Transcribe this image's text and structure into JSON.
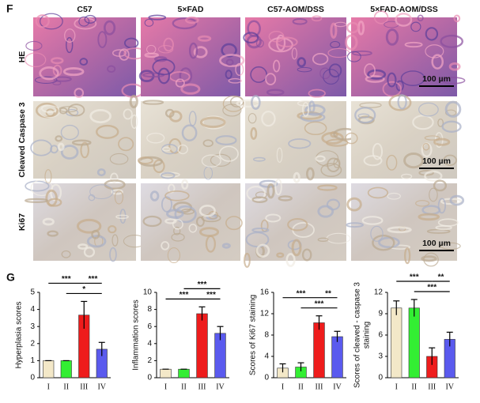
{
  "panel_f": {
    "label": "F",
    "columns": [
      "C57",
      "5×FAD",
      "C57-AOM/DSS",
      "5×FAD-AOM/DSS"
    ],
    "rows": [
      "HE",
      "Cleaved Caspase 3",
      "Ki67"
    ],
    "scale_bar": "100 µm"
  },
  "panel_g": {
    "label": "G"
  },
  "chart_data": [
    {
      "type": "bar",
      "ylabel": [
        "Hyperplasia scores"
      ],
      "categories": [
        "I",
        "II",
        "III",
        "IV"
      ],
      "values": [
        1,
        1,
        3.67,
        1.67
      ],
      "errors": [
        0,
        0,
        0.8,
        0.4
      ],
      "colors": [
        "#f3e8c8",
        "#33ee33",
        "#ee1c1c",
        "#5a5aee"
      ],
      "ylim": [
        0,
        5
      ],
      "yticks": [
        0,
        1,
        2,
        3,
        4,
        5
      ],
      "significance": [
        {
          "from": 1,
          "to": 3,
          "label": "*"
        },
        {
          "from": 0,
          "to": 2,
          "label": "***"
        },
        {
          "from": 2,
          "to": 3,
          "label": "***"
        }
      ]
    },
    {
      "type": "bar",
      "ylabel": [
        "Inflammation scores"
      ],
      "categories": [
        "I",
        "II",
        "III",
        "IV"
      ],
      "values": [
        1,
        1,
        7.5,
        5.2
      ],
      "errors": [
        0,
        0,
        0.8,
        0.8
      ],
      "colors": [
        "#f3e8c8",
        "#33ee33",
        "#ee1c1c",
        "#5a5aee"
      ],
      "ylim": [
        0,
        10
      ],
      "yticks": [
        0,
        2,
        4,
        6,
        8,
        10
      ],
      "significance": [
        {
          "from": 0,
          "to": 2,
          "label": "***"
        },
        {
          "from": 2,
          "to": 3,
          "label": "***"
        },
        {
          "from": 1,
          "to": 3,
          "label": "***"
        }
      ]
    },
    {
      "type": "bar",
      "ylabel": [
        "Scores of Ki67 staining"
      ],
      "categories": [
        "I",
        "II",
        "III",
        "IV"
      ],
      "values": [
        1.8,
        2.0,
        10.3,
        7.7
      ],
      "errors": [
        0.8,
        0.8,
        1.3,
        1.0
      ],
      "colors": [
        "#f3e8c8",
        "#33ee33",
        "#ee1c1c",
        "#5a5aee"
      ],
      "ylim": [
        0,
        16
      ],
      "yticks": [
        0,
        4,
        8,
        12,
        16
      ],
      "significance": [
        {
          "from": 1,
          "to": 3,
          "label": "***"
        },
        {
          "from": 0,
          "to": 2,
          "label": "***"
        },
        {
          "from": 2,
          "to": 3,
          "label": "**"
        }
      ]
    },
    {
      "type": "bar",
      "ylabel": [
        "Scores of cleaved - caspase 3",
        "staining"
      ],
      "categories": [
        "I",
        "II",
        "III",
        "IV"
      ],
      "values": [
        9.8,
        9.8,
        3.0,
        5.4
      ],
      "errors": [
        1.0,
        1.2,
        1.2,
        1.0
      ],
      "colors": [
        "#f3e8c8",
        "#33ee33",
        "#ee1c1c",
        "#5a5aee"
      ],
      "ylim": [
        0,
        12
      ],
      "yticks": [
        0,
        3,
        6,
        9,
        12
      ],
      "significance": [
        {
          "from": 1,
          "to": 3,
          "label": "***"
        },
        {
          "from": 0,
          "to": 2,
          "label": "***"
        },
        {
          "from": 2,
          "to": 3,
          "label": "**"
        }
      ]
    }
  ]
}
